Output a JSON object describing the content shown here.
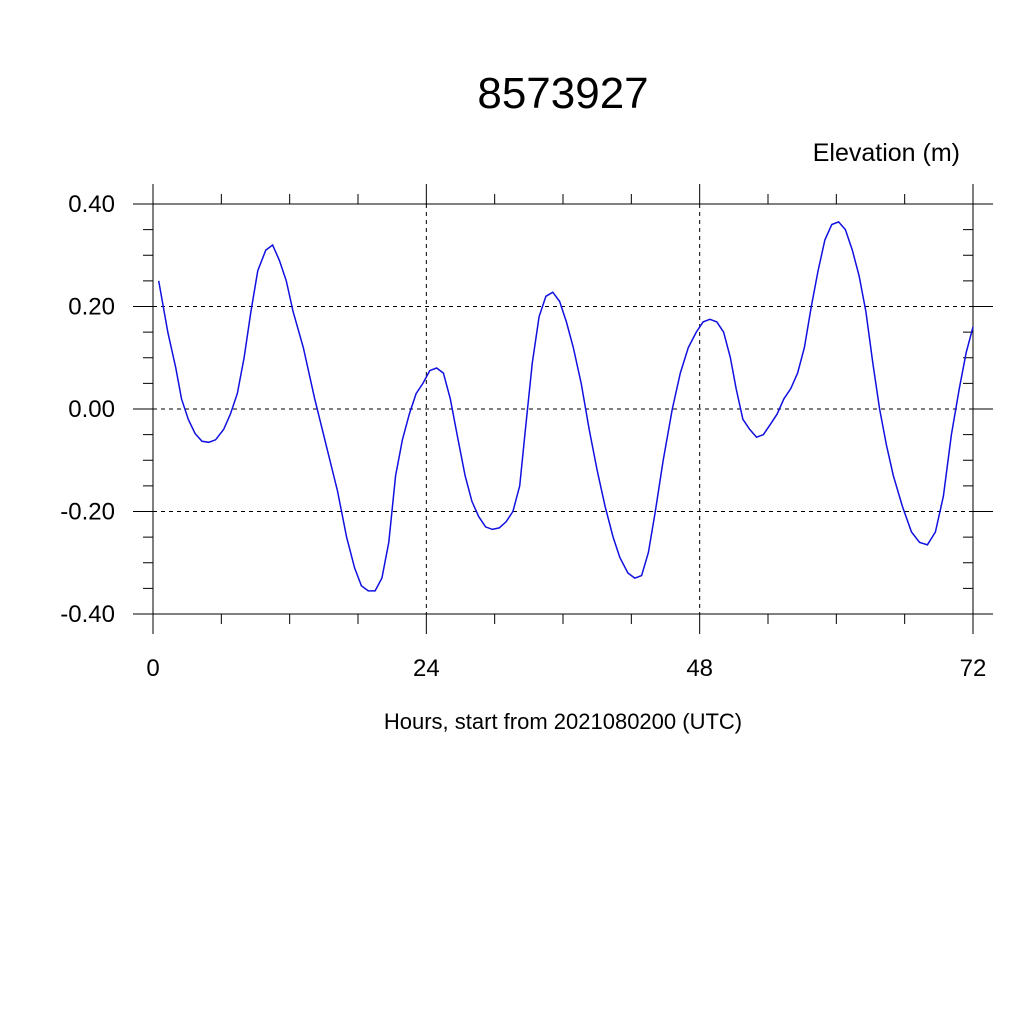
{
  "chart_data": {
    "type": "line",
    "title": "8573927",
    "ylabel": "Elevation (m)",
    "xlabel": "Hours, start from 2021080200 (UTC)",
    "xlim": [
      0,
      72
    ],
    "ylim": [
      -0.4,
      0.4
    ],
    "xticks": [
      0,
      24,
      48,
      72
    ],
    "xtick_labels": [
      "0",
      "24",
      "48",
      "72"
    ],
    "yticks": [
      0.4,
      0.2,
      0.0,
      -0.2,
      -0.4
    ],
    "ytick_labels": [
      "0.40",
      "0.20",
      "0.00",
      "-0.20",
      "-0.40"
    ],
    "grid": true,
    "line_color": "#1010e0",
    "series": [
      {
        "x": [
          0.5,
          1.3,
          2,
          2.5,
          3.1,
          3.7,
          4.3,
          4.9,
          5.5,
          6.2,
          6.8,
          7.4,
          8,
          8.6,
          9.2,
          9.9,
          10.5,
          11.1,
          11.7,
          12.3,
          13.2,
          14.2,
          15.2,
          16.2,
          17,
          17.7,
          18.3,
          18.9,
          19.5,
          20.1,
          20.7,
          21.3,
          21.9,
          22.5,
          23.1,
          23.7,
          24.3,
          24.9,
          25.5,
          26.1,
          26.7,
          27.4,
          28,
          28.6,
          29.2,
          29.8,
          30.4,
          31,
          31.6,
          32.2,
          32.7,
          33.3,
          33.9,
          34.5,
          35.1,
          35.7,
          36.3,
          36.9,
          37.6,
          38.3,
          39,
          39.7,
          40.4,
          41,
          41.7,
          42.3,
          42.9,
          43.5,
          44.1,
          44.8,
          45.6,
          46.3,
          47,
          47.7,
          48.3,
          48.9,
          49.5,
          50.1,
          50.7,
          51.2,
          51.8,
          52.4,
          53,
          53.6,
          54.2,
          54.8,
          55.4,
          56,
          56.6,
          57.2,
          57.8,
          58.4,
          59,
          59.6,
          60.2,
          60.8,
          61.4,
          62,
          62.6,
          63.2,
          63.8,
          64.4,
          65,
          65.8,
          66.6,
          67.3,
          68,
          68.7,
          69.4,
          70.1,
          70.8,
          71.4,
          72
        ],
        "y": [
          0.25,
          0.15,
          0.08,
          0.02,
          -0.02,
          -0.048,
          -0.063,
          -0.065,
          -0.06,
          -0.04,
          -0.01,
          0.03,
          0.1,
          0.19,
          0.27,
          0.31,
          0.32,
          0.29,
          0.25,
          0.19,
          0.12,
          0.02,
          -0.07,
          -0.16,
          -0.25,
          -0.31,
          -0.345,
          -0.355,
          -0.355,
          -0.33,
          -0.26,
          -0.13,
          -0.06,
          -0.01,
          0.03,
          0.05,
          0.075,
          0.08,
          0.07,
          0.02,
          -0.05,
          -0.13,
          -0.18,
          -0.21,
          -0.23,
          -0.235,
          -0.232,
          -0.22,
          -0.2,
          -0.15,
          -0.04,
          0.09,
          0.18,
          0.22,
          0.228,
          0.21,
          0.17,
          0.12,
          0.05,
          -0.04,
          -0.12,
          -0.19,
          -0.25,
          -0.29,
          -0.32,
          -0.33,
          -0.325,
          -0.28,
          -0.2,
          -0.1,
          0.0,
          0.07,
          0.12,
          0.15,
          0.17,
          0.175,
          0.17,
          0.15,
          0.1,
          0.04,
          -0.02,
          -0.04,
          -0.055,
          -0.05,
          -0.03,
          -0.01,
          0.02,
          0.04,
          0.07,
          0.12,
          0.2,
          0.27,
          0.33,
          0.36,
          0.365,
          0.35,
          0.31,
          0.26,
          0.19,
          0.09,
          0.0,
          -0.07,
          -0.13,
          -0.19,
          -0.24,
          -0.26,
          -0.265,
          -0.24,
          -0.17,
          -0.05,
          0.04,
          0.11,
          0.16
        ]
      }
    ]
  }
}
